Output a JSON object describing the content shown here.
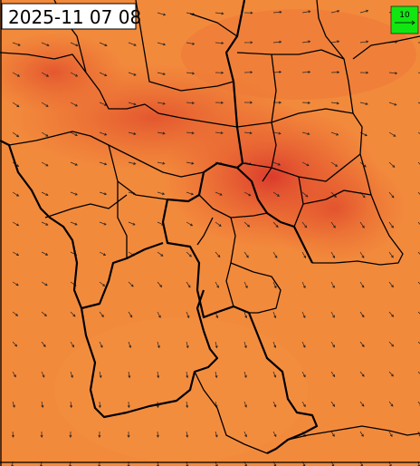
{
  "timestamp": "2025-11 07 08",
  "legend": {
    "label": "10"
  }
}
